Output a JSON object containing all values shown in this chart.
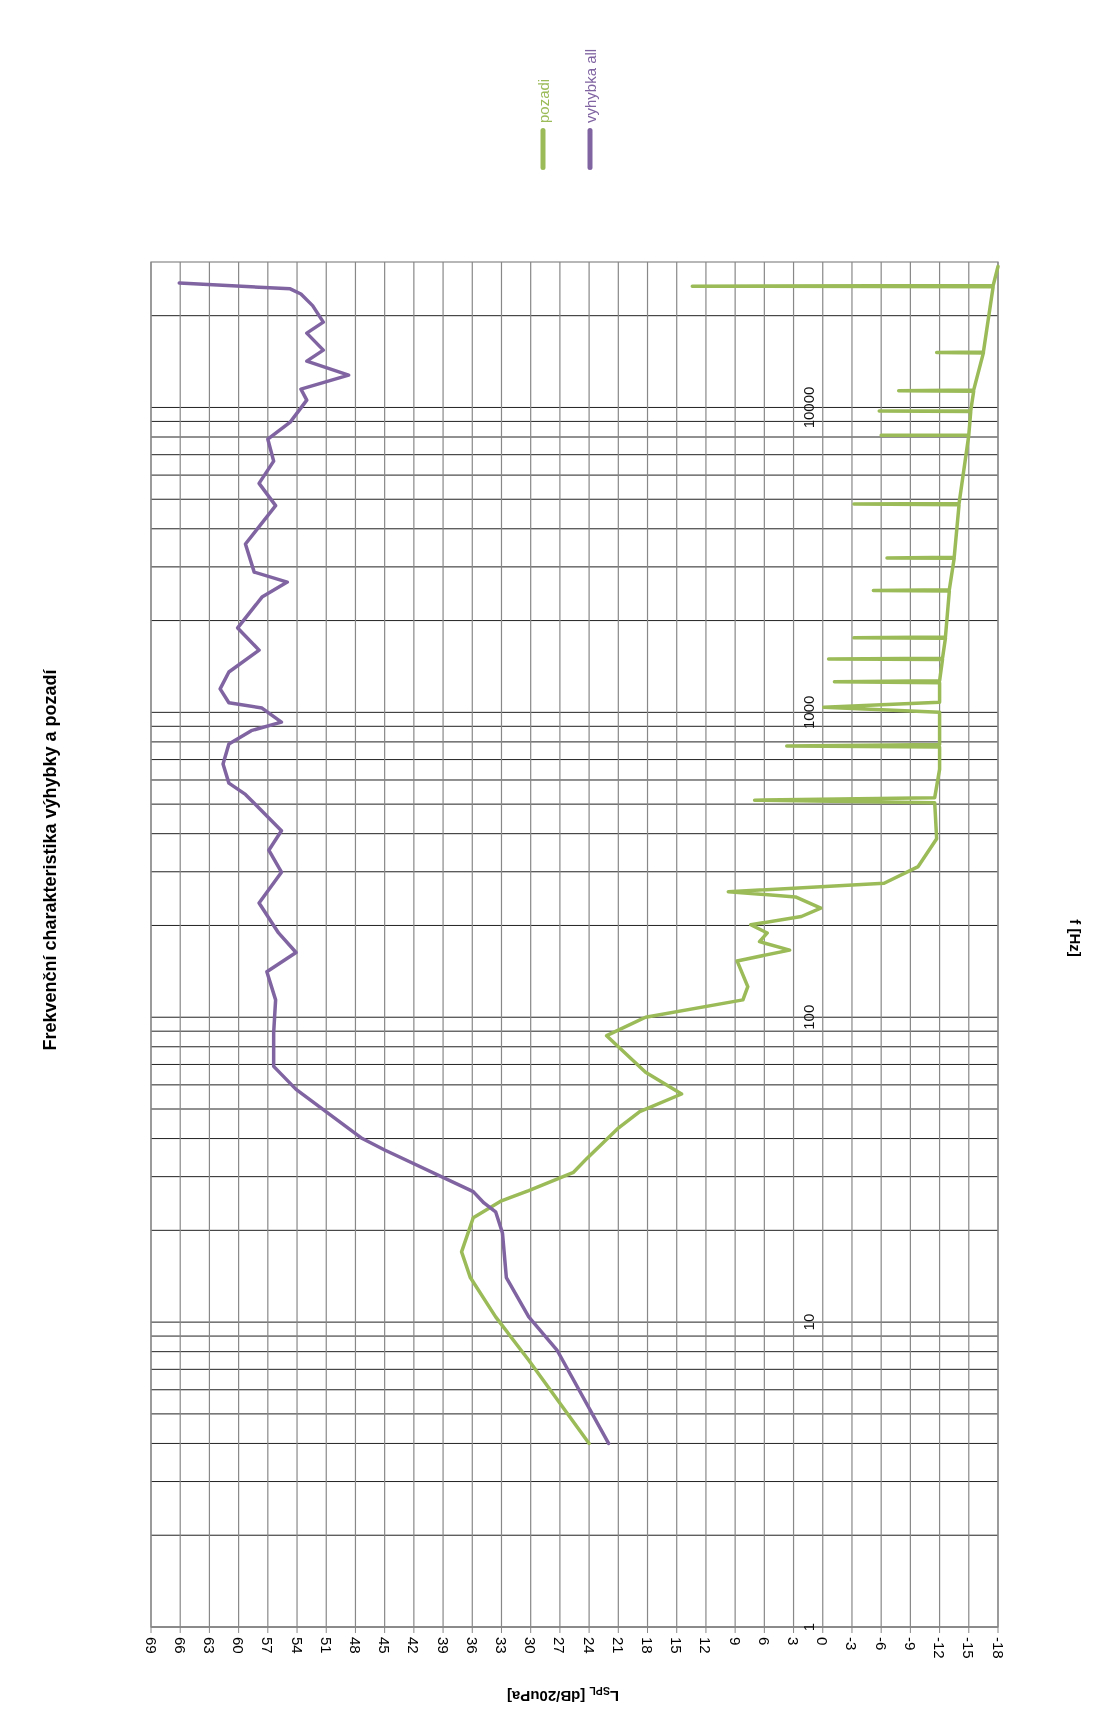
{
  "chart_data": {
    "type": "line",
    "title": "Frekvenční charakteristika výhybky a pozadí",
    "xlabel": "L$_{SPL}$ [dB/20uPa]",
    "ylabel": "f [Hz]",
    "log": "y",
    "xlim": [
      69,
      -18
    ],
    "ylim": [
      1,
      30000
    ],
    "xticks": [
      69,
      66,
      63,
      60,
      57,
      54,
      51,
      48,
      45,
      42,
      39,
      36,
      33,
      30,
      27,
      24,
      21,
      18,
      15,
      12,
      9,
      6,
      3,
      0,
      -3,
      -6,
      -9,
      -12,
      -15,
      -18
    ],
    "yticks": [
      1,
      {
        "value": 2,
        "label": null
      },
      {
        "value": 3,
        "label": null
      },
      {
        "value": 4,
        "label": null
      },
      {
        "value": 5,
        "label": null
      },
      {
        "value": 6,
        "label": null
      },
      {
        "value": 7,
        "label": null
      },
      {
        "value": 8,
        "label": null
      },
      {
        "value": 9,
        "label": null
      },
      10,
      {
        "value": 20,
        "label": null
      },
      {
        "value": 30,
        "label": null
      },
      {
        "value": 40,
        "label": null
      },
      {
        "value": 50,
        "label": null
      },
      {
        "value": 60,
        "label": null
      },
      {
        "value": 70,
        "label": null
      },
      {
        "value": 80,
        "label": null
      },
      {
        "value": 90,
        "label": null
      },
      100,
      {
        "value": 200,
        "label": null
      },
      {
        "value": 300,
        "label": null
      },
      {
        "value": 400,
        "label": null
      },
      {
        "value": 500,
        "label": null
      },
      {
        "value": 600,
        "label": null
      },
      {
        "value": 700,
        "label": null
      },
      {
        "value": 800,
        "label": null
      },
      {
        "value": 900,
        "label": null
      },
      1000,
      {
        "value": 2000,
        "label": null
      },
      {
        "value": 3000,
        "label": null
      },
      {
        "value": 4000,
        "label": null
      },
      {
        "value": 5000,
        "label": null
      },
      {
        "value": 6000,
        "label": null
      },
      {
        "value": 7000,
        "label": null
      },
      {
        "value": 8000,
        "label": null
      },
      {
        "value": 9000,
        "label": null
      },
      10000,
      {
        "value": 20000,
        "label": null
      }
    ],
    "grid": true,
    "legend": "top",
    "marker": "none",
    "line_style": "solid",
    "series": [
      {
        "name": "pozadi",
        "color": "#9bbb59",
        "x": [
          24,
          30.2,
          33.6,
          36.2,
          37.1,
          35.9,
          33,
          30.2,
          25.6,
          24.2,
          21.1,
          18.8,
          14.5,
          18.2,
          22.2,
          18.2,
          8.2,
          7.7,
          8.8,
          3.4,
          6.5,
          5.7,
          7.4,
          2.2,
          0.2,
          2.8,
          9.7,
          -6.3,
          -9.8,
          -11.7,
          -11.5,
          7,
          -11.5,
          -12,
          -12,
          3.7,
          -12,
          -12,
          -0.1,
          -12,
          -12,
          -1.2,
          -12,
          -12.3,
          -0.6,
          -12.3,
          -12.6,
          -3.2,
          -12.6,
          -13,
          -5.2,
          -13,
          -13.5,
          -6.6,
          -13.5,
          -14,
          -3.2,
          -14,
          -15,
          -6,
          -15,
          -15.2,
          -5.8,
          -15.2,
          -15.5,
          -7.8,
          -15.5,
          -16.5,
          -11.7,
          -16.5,
          -17.5,
          13.4,
          -17.5,
          -18
        ],
        "values": [
          4,
          7.5,
          10.4,
          14,
          17,
          22,
          25,
          27,
          31,
          34.5,
          43,
          49,
          56,
          66,
          87,
          100,
          114,
          126,
          153,
          166,
          177,
          189,
          201,
          214,
          228,
          248,
          258,
          275,
          312,
          385,
          505,
          515,
          525,
          650,
          770,
          776,
          785,
          1000,
          1040,
          1080,
          1250,
          1259,
          1270,
          1490,
          1496,
          1505,
          1750,
          1755,
          1765,
          2500,
          2512,
          2525,
          3200,
          3210,
          3225,
          4800,
          4820,
          4840,
          8100,
          8110,
          8130,
          9700,
          9730,
          9760,
          11300,
          11350,
          11400,
          15100,
          15150,
          15200,
          24900,
          25000,
          25100,
          29000
        ]
      },
      {
        "name": "vyhybka all",
        "color": "#8064a2",
        "x": [
          22,
          27.3,
          30.2,
          32.5,
          32.9,
          33.6,
          34.8,
          35.9,
          45,
          47.3,
          54.1,
          56.4,
          56.4,
          56.2,
          57.1,
          54.1,
          55.9,
          57.9,
          55.6,
          56.9,
          55.6,
          59.3,
          61,
          61.6,
          61,
          58.7,
          55.6,
          57.6,
          61,
          61.9,
          61,
          57.9,
          60.1,
          57.6,
          55,
          58.4,
          59.3,
          56.2,
          57.9,
          56.4,
          57,
          54.7,
          53,
          53.6,
          48.7,
          53,
          51.3,
          53,
          51.3,
          52.4,
          53.6,
          54.7,
          66.1
        ],
        "values": [
          4,
          8.1,
          10.4,
          14,
          19.6,
          23,
          24.6,
          26.8,
          36.7,
          40,
          58,
          69,
          89,
          114,
          141,
          163,
          189,
          237,
          299,
          353,
          409,
          538,
          586,
          677,
          787,
          871,
          929,
          1033,
          1075,
          1194,
          1356,
          1600,
          1892,
          2388,
          2674,
          2884,
          3565,
          4764,
          5638,
          6670,
          7870,
          8950,
          10570,
          11480,
          12770,
          14190,
          15420,
          17530,
          19050,
          21580,
          23550,
          24500,
          25600
        ]
      }
    ]
  }
}
